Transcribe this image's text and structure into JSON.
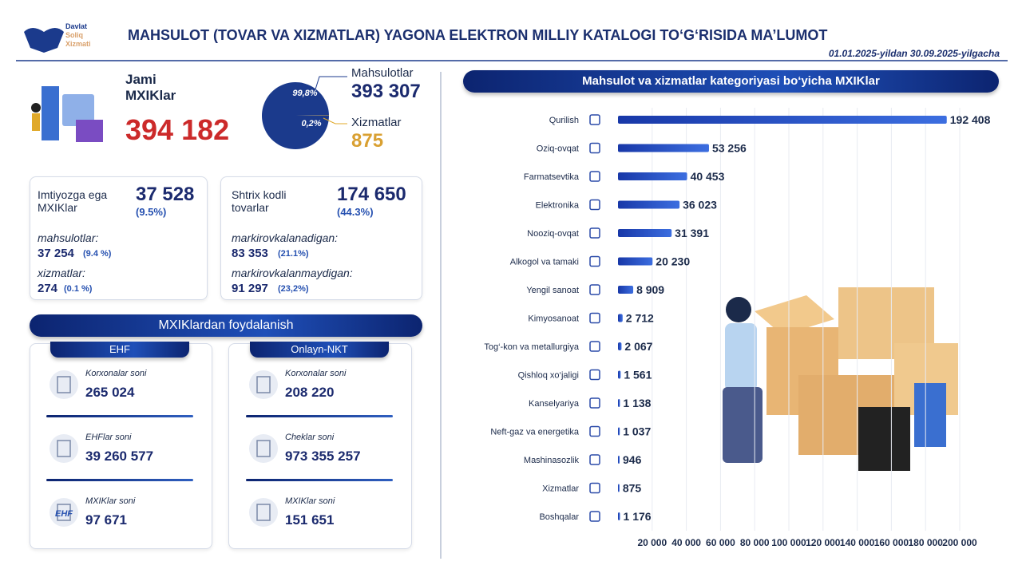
{
  "header": {
    "org": [
      "Davlat",
      "Soliq",
      "Xizmati"
    ],
    "title": "MAHSULOT (TOVAR VA XIZMATLAR) YAGONA ELEKTRON MILLIY KATALOGI TO‘G‘RISIDA MA’LUMOT",
    "period": "01.01.2025-yildan 30.09.2025-yilgacha"
  },
  "total": {
    "label": "Jami MXIKlar",
    "value": "394 182"
  },
  "cards": [
    {
      "title": "Imtiyozga ega MXIKlar",
      "value": "37 528",
      "share": "(9.5%)",
      "items": [
        {
          "label": "mahsulotlar:",
          "value": "37 254",
          "share": "(9.4 %)"
        },
        {
          "label": "xizmatlar:",
          "value": "274",
          "share": "(0.1 %)"
        }
      ]
    },
    {
      "title": "Shtrix kodli tovarlar",
      "value": "174 650",
      "share": "(44.3%)",
      "items": [
        {
          "label": "markirovkalanadigan:",
          "value": "83 353",
          "share": "(21.1%)"
        },
        {
          "label": "markirovkalanmaydigan:",
          "value": "91 297",
          "share": "(23,2%)"
        }
      ]
    }
  ],
  "usage": {
    "title": "MXIKlardan foydalanish",
    "groups": [
      {
        "name": "EHF",
        "icon_text": "EHF",
        "items": [
          {
            "label": "Korxonalar soni",
            "value": "265 024"
          },
          {
            "label": "EHFlar soni",
            "value": "39 260 577"
          },
          {
            "label": "MXIKlar soni",
            "value": "97 671"
          }
        ]
      },
      {
        "name": "Onlayn-NKT",
        "items": [
          {
            "label": "Korxonalar soni",
            "value": "208 220"
          },
          {
            "label": "Cheklar soni",
            "value": "973 355 257"
          },
          {
            "label": "MXIKlar soni",
            "value": "151 651"
          }
        ]
      }
    ]
  },
  "chart_data": [
    {
      "type": "pie",
      "categories": [
        "Mahsulotlar",
        "Xizmatlar"
      ],
      "values": [
        99.8,
        0.2
      ],
      "value_labels": [
        "99,8%",
        "0,2%"
      ],
      "counts": [
        "393 307",
        "875"
      ],
      "colors": [
        "#1b3a8c",
        "#e0a92a"
      ]
    },
    {
      "type": "bar",
      "title": "Mahsulot va xizmatlar kategoriyasi bo‘yicha MXIKlar",
      "orientation": "horizontal",
      "color": "#1f45c4",
      "categories": [
        "Qurilish",
        "Oziq-ovqat",
        "Farmatsevtika",
        "Elektronika",
        "Nooziq-ovqat",
        "Alkogol va tamaki",
        "Yengil sanoat",
        "Kimyosanoat",
        "Tog‘-kon va metallurgiya",
        "Qishloq xo‘jaligi",
        "Kanselyariya",
        "Neft-gaz va energetika",
        "Mashinasozlik",
        "Xizmatlar",
        "Boshqalar"
      ],
      "values": [
        192408,
        53256,
        40453,
        36023,
        31391,
        20230,
        8909,
        2712,
        2067,
        1561,
        1138,
        1037,
        946,
        875,
        1176
      ],
      "value_labels": [
        "192 408",
        "53 256",
        "40 453",
        "36 023",
        "31 391",
        "20 230",
        "8 909",
        "2 712",
        "2 067",
        "1 561",
        "1 138",
        "1 037",
        "946",
        "875",
        "1 176"
      ],
      "xlim": [
        0,
        200000
      ],
      "xticks": [
        {
          "value": 20000,
          "label": "20 000"
        },
        {
          "value": 40000,
          "label": "40 000"
        },
        {
          "value": 60000,
          "label": "60 000"
        },
        {
          "value": 80000,
          "label": "80 000"
        },
        {
          "value": 100000,
          "label": "100 000"
        },
        {
          "value": 120000,
          "label": "120 000"
        },
        {
          "value": 140000,
          "label": "140 000"
        },
        {
          "value": 160000,
          "label": "160 000"
        },
        {
          "value": 180000,
          "label": "180 000"
        },
        {
          "value": 200000,
          "label": "200 000"
        }
      ],
      "grid": true
    }
  ]
}
